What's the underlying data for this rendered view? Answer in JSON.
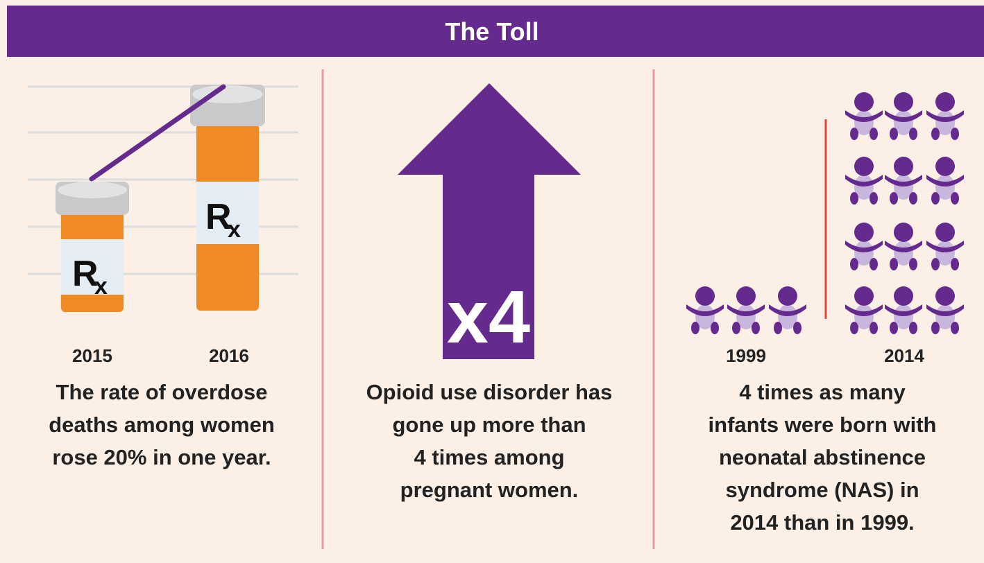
{
  "header": {
    "title": "The Toll"
  },
  "panels": [
    {
      "bottle_label": [
        "R",
        "x"
      ],
      "years": [
        "2015",
        "2016"
      ],
      "caption": [
        "The rate of overdose",
        "deaths among women",
        "rose 20% in one year."
      ]
    },
    {
      "arrow_label": "x4",
      "caption": [
        "Opioid use disorder has",
        "gone up more than",
        "4 times among",
        "pregnant women."
      ]
    },
    {
      "years": [
        "1999",
        "2014"
      ],
      "caption": [
        "4 times as many",
        "infants were born with",
        "neonatal abstinence",
        "syndrome (NAS) in",
        "2014 than in 1999."
      ]
    }
  ]
}
